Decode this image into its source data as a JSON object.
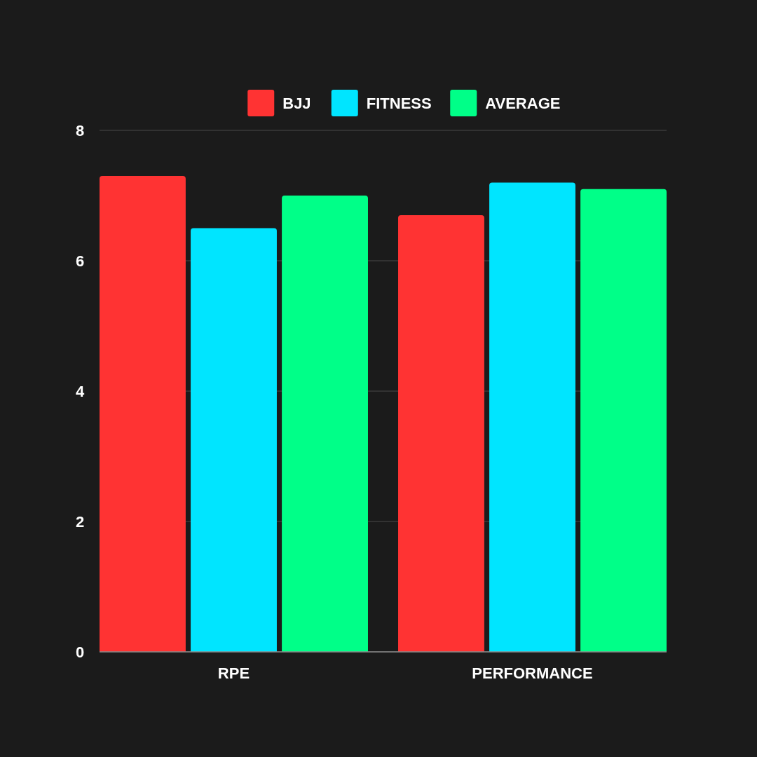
{
  "chart_data": {
    "type": "bar",
    "categories": [
      "RPE",
      "PERFORMANCE"
    ],
    "series": [
      {
        "name": "BJJ",
        "color": "#ff3333",
        "values": [
          7.3,
          6.7
        ]
      },
      {
        "name": "FITNESS",
        "color": "#00e5ff",
        "values": [
          6.5,
          7.2
        ]
      },
      {
        "name": "AVERAGE",
        "color": "#00ff88",
        "values": [
          7.0,
          7.1
        ]
      }
    ],
    "ylim": [
      0,
      8
    ],
    "yticks": [
      0,
      2,
      4,
      6,
      8
    ],
    "grid": "y",
    "legend": "top"
  }
}
